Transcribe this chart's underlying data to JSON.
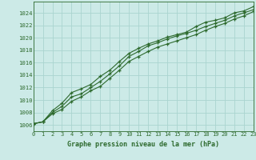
{
  "x": [
    0,
    1,
    2,
    3,
    4,
    5,
    6,
    7,
    8,
    9,
    10,
    11,
    12,
    13,
    14,
    15,
    16,
    17,
    18,
    19,
    20,
    21,
    22,
    23
  ],
  "line_high": [
    1006.2,
    1006.5,
    1008.3,
    1009.5,
    1011.2,
    1011.8,
    1012.5,
    1013.8,
    1014.8,
    1016.2,
    1017.5,
    1018.3,
    1019.0,
    1019.5,
    1020.1,
    1020.5,
    1020.9,
    1021.8,
    1022.5,
    1022.8,
    1023.2,
    1024.0,
    1024.3,
    1025.0
  ],
  "line_mid": [
    1006.2,
    1006.5,
    1008.0,
    1009.0,
    1010.5,
    1011.0,
    1012.0,
    1013.0,
    1014.2,
    1015.5,
    1017.0,
    1017.8,
    1018.7,
    1019.2,
    1019.8,
    1020.3,
    1020.7,
    1021.2,
    1021.8,
    1022.3,
    1022.8,
    1023.5,
    1024.0,
    1024.5
  ],
  "line_low": [
    1006.2,
    1006.5,
    1007.8,
    1008.5,
    1009.8,
    1010.5,
    1011.5,
    1012.2,
    1013.5,
    1014.8,
    1016.2,
    1017.0,
    1017.8,
    1018.5,
    1019.0,
    1019.5,
    1020.0,
    1020.5,
    1021.2,
    1021.8,
    1022.3,
    1023.0,
    1023.5,
    1024.2
  ],
  "line_color": "#2d6a2d",
  "bg_color": "#cceae7",
  "grid_color": "#aad4d0",
  "xlabel": "Graphe pression niveau de la mer (hPa)",
  "yticks": [
    1006,
    1008,
    1010,
    1012,
    1014,
    1016,
    1018,
    1020,
    1022,
    1024
  ],
  "ylim": [
    1005.0,
    1025.8
  ],
  "xlim": [
    0,
    23
  ],
  "marker": "+",
  "lw": 0.8,
  "ms": 3.5
}
